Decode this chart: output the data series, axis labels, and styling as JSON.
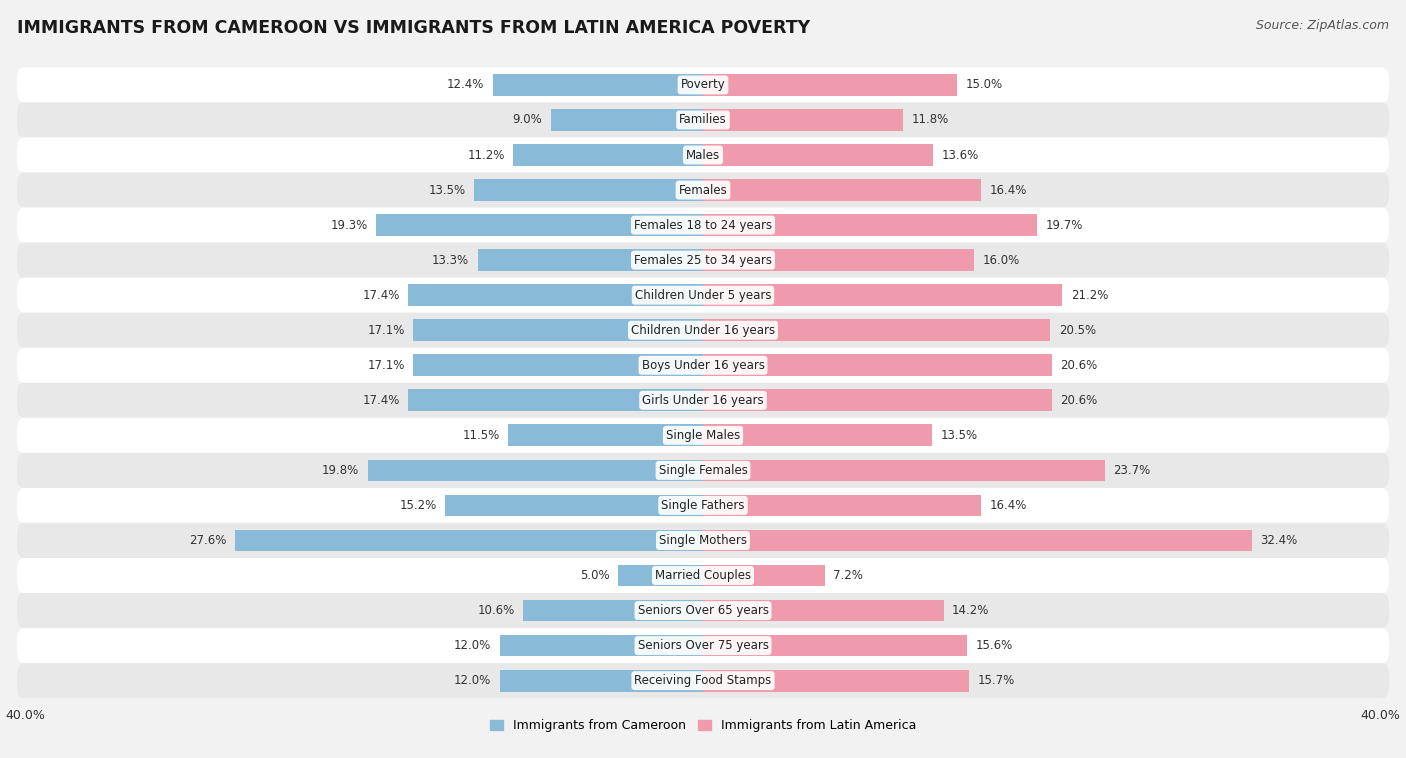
{
  "title": "IMMIGRANTS FROM CAMEROON VS IMMIGRANTS FROM LATIN AMERICA POVERTY",
  "source": "Source: ZipAtlas.com",
  "categories": [
    "Poverty",
    "Families",
    "Males",
    "Females",
    "Females 18 to 24 years",
    "Females 25 to 34 years",
    "Children Under 5 years",
    "Children Under 16 years",
    "Boys Under 16 years",
    "Girls Under 16 years",
    "Single Males",
    "Single Females",
    "Single Fathers",
    "Single Mothers",
    "Married Couples",
    "Seniors Over 65 years",
    "Seniors Over 75 years",
    "Receiving Food Stamps"
  ],
  "cameroon_values": [
    12.4,
    9.0,
    11.2,
    13.5,
    19.3,
    13.3,
    17.4,
    17.1,
    17.1,
    17.4,
    11.5,
    19.8,
    15.2,
    27.6,
    5.0,
    10.6,
    12.0,
    12.0
  ],
  "latin_values": [
    15.0,
    11.8,
    13.6,
    16.4,
    19.7,
    16.0,
    21.2,
    20.5,
    20.6,
    20.6,
    13.5,
    23.7,
    16.4,
    32.4,
    7.2,
    14.2,
    15.6,
    15.7
  ],
  "cameroon_color": "#89BBD9",
  "latin_color": "#EF9BAD",
  "bar_height": 0.62,
  "axis_limit": 40.0,
  "background_color": "#f2f2f2",
  "row_bg_odd": "#ffffff",
  "row_bg_even": "#e8e8e8",
  "legend_cameroon": "Immigrants from Cameroon",
  "legend_latin": "Immigrants from Latin America",
  "title_fontsize": 12.5,
  "source_fontsize": 9,
  "value_fontsize": 8.5,
  "category_fontsize": 8.5,
  "tick_fontsize": 9
}
